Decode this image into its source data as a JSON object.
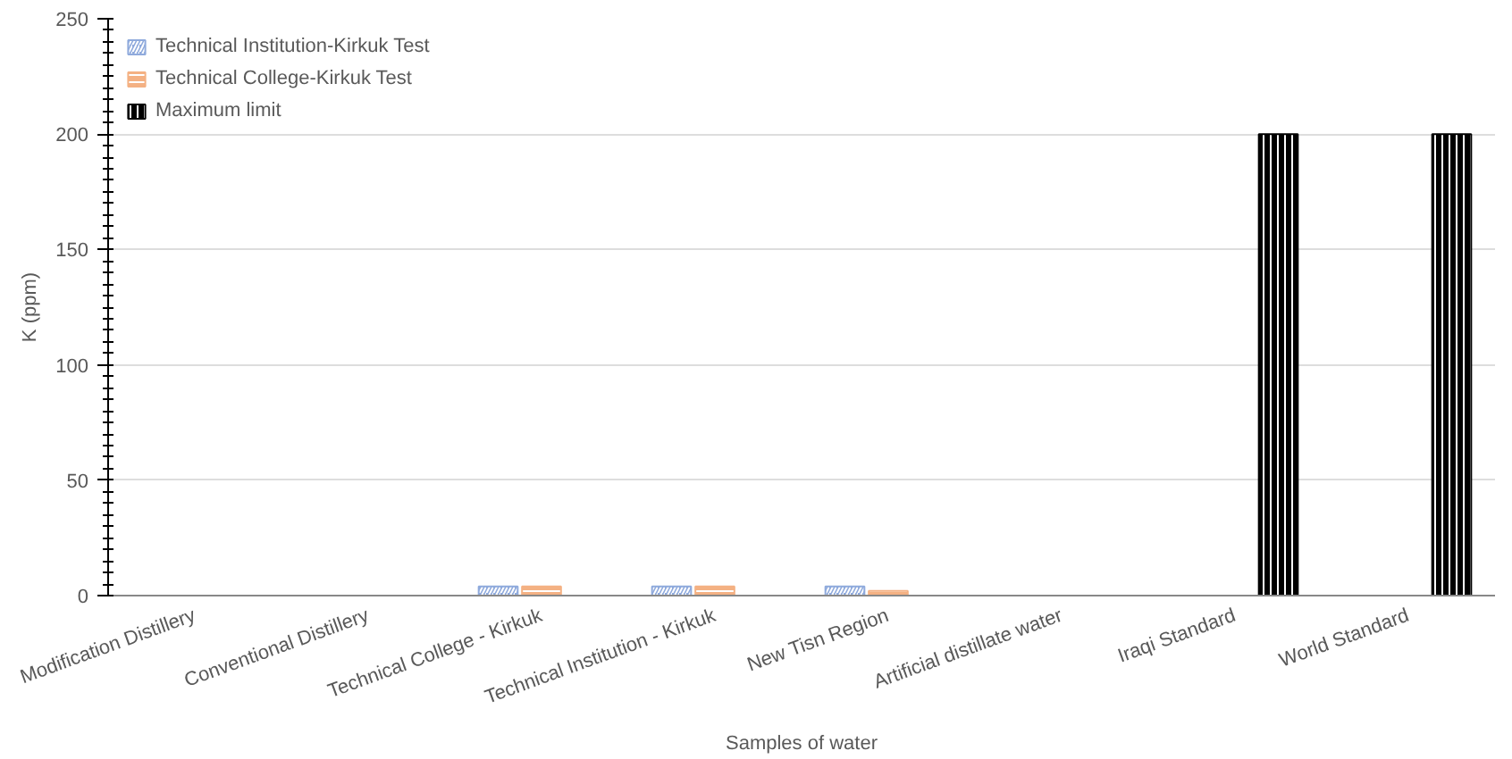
{
  "chart_data": {
    "type": "bar",
    "xlabel": "Samples of water",
    "ylabel": "K (ppm)",
    "categories": [
      "Modification Distillery",
      "Conventional Distillery",
      "Technical College - Kirkuk",
      "Technical Institution - Kirkuk",
      "New Tisn Region",
      "Artificial distillate water",
      "Iraqi Standard",
      "World Standard"
    ],
    "series": [
      {
        "name": "Technical Institution-Kirkuk Test",
        "color": "#8faadc",
        "values": [
          null,
          null,
          4,
          4,
          4,
          null,
          null,
          null
        ]
      },
      {
        "name": "Technical College-Kirkuk Test",
        "color": "#f4b183",
        "values": [
          null,
          null,
          4,
          4,
          2,
          null,
          null,
          null
        ]
      },
      {
        "name": "Maximum limit",
        "color": "#000000",
        "values": [
          null,
          null,
          null,
          null,
          null,
          null,
          200,
          200
        ]
      }
    ],
    "ylim": [
      0,
      250
    ],
    "yticks": [
      0,
      50,
      100,
      150,
      200,
      250
    ],
    "grid": "y",
    "legend": "top left"
  }
}
